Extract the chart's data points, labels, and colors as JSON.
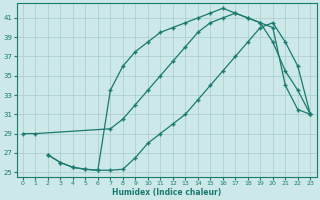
{
  "xlabel": "Humidex (Indice chaleur)",
  "bg_color": "#cce8e8",
  "grid_color": "#aacccc",
  "line_color": "#1a7a6e",
  "xlim": [
    -0.5,
    23.5
  ],
  "ylim": [
    24.5,
    42.5
  ],
  "xticks": [
    0,
    1,
    2,
    3,
    4,
    5,
    6,
    7,
    8,
    9,
    10,
    11,
    12,
    13,
    14,
    15,
    16,
    17,
    18,
    19,
    20,
    21,
    22,
    23
  ],
  "yticks": [
    25,
    27,
    29,
    31,
    33,
    35,
    37,
    39,
    41
  ],
  "curve1_x": [
    0,
    1,
    7,
    8,
    9,
    10,
    11,
    12,
    13,
    14,
    15,
    16,
    17,
    18,
    19,
    20,
    21,
    22,
    23
  ],
  "curve1_y": [
    29,
    29,
    29.5,
    30.5,
    32.0,
    33.5,
    35.0,
    36.5,
    38.0,
    39.5,
    40.5,
    41.0,
    41.5,
    41.0,
    40.5,
    38.5,
    35.5,
    33.5,
    31.0
  ],
  "curve2_x": [
    2,
    3,
    4,
    5,
    6,
    7,
    8,
    9,
    10,
    11,
    12,
    13,
    14,
    15,
    16,
    17,
    18,
    19,
    20,
    21,
    22,
    23
  ],
  "curve2_y": [
    26.8,
    26.0,
    25.5,
    25.3,
    25.2,
    25.2,
    25.3,
    26.5,
    28.0,
    29.0,
    30.0,
    31.0,
    32.5,
    34.0,
    35.5,
    37.0,
    38.5,
    40.0,
    40.5,
    38.5,
    36.0,
    31.0
  ],
  "curve3_x": [
    2,
    3,
    4,
    5,
    6,
    7,
    8,
    9,
    10,
    11,
    12,
    13,
    14,
    15,
    16,
    17,
    18,
    19,
    20,
    21,
    22,
    23
  ],
  "curve3_y": [
    26.8,
    26.0,
    25.5,
    25.3,
    25.2,
    33.5,
    36.0,
    37.5,
    38.5,
    39.5,
    40.0,
    40.5,
    41.0,
    41.5,
    42.0,
    41.5,
    41.0,
    40.5,
    40.0,
    34.0,
    31.5,
    31.0
  ]
}
